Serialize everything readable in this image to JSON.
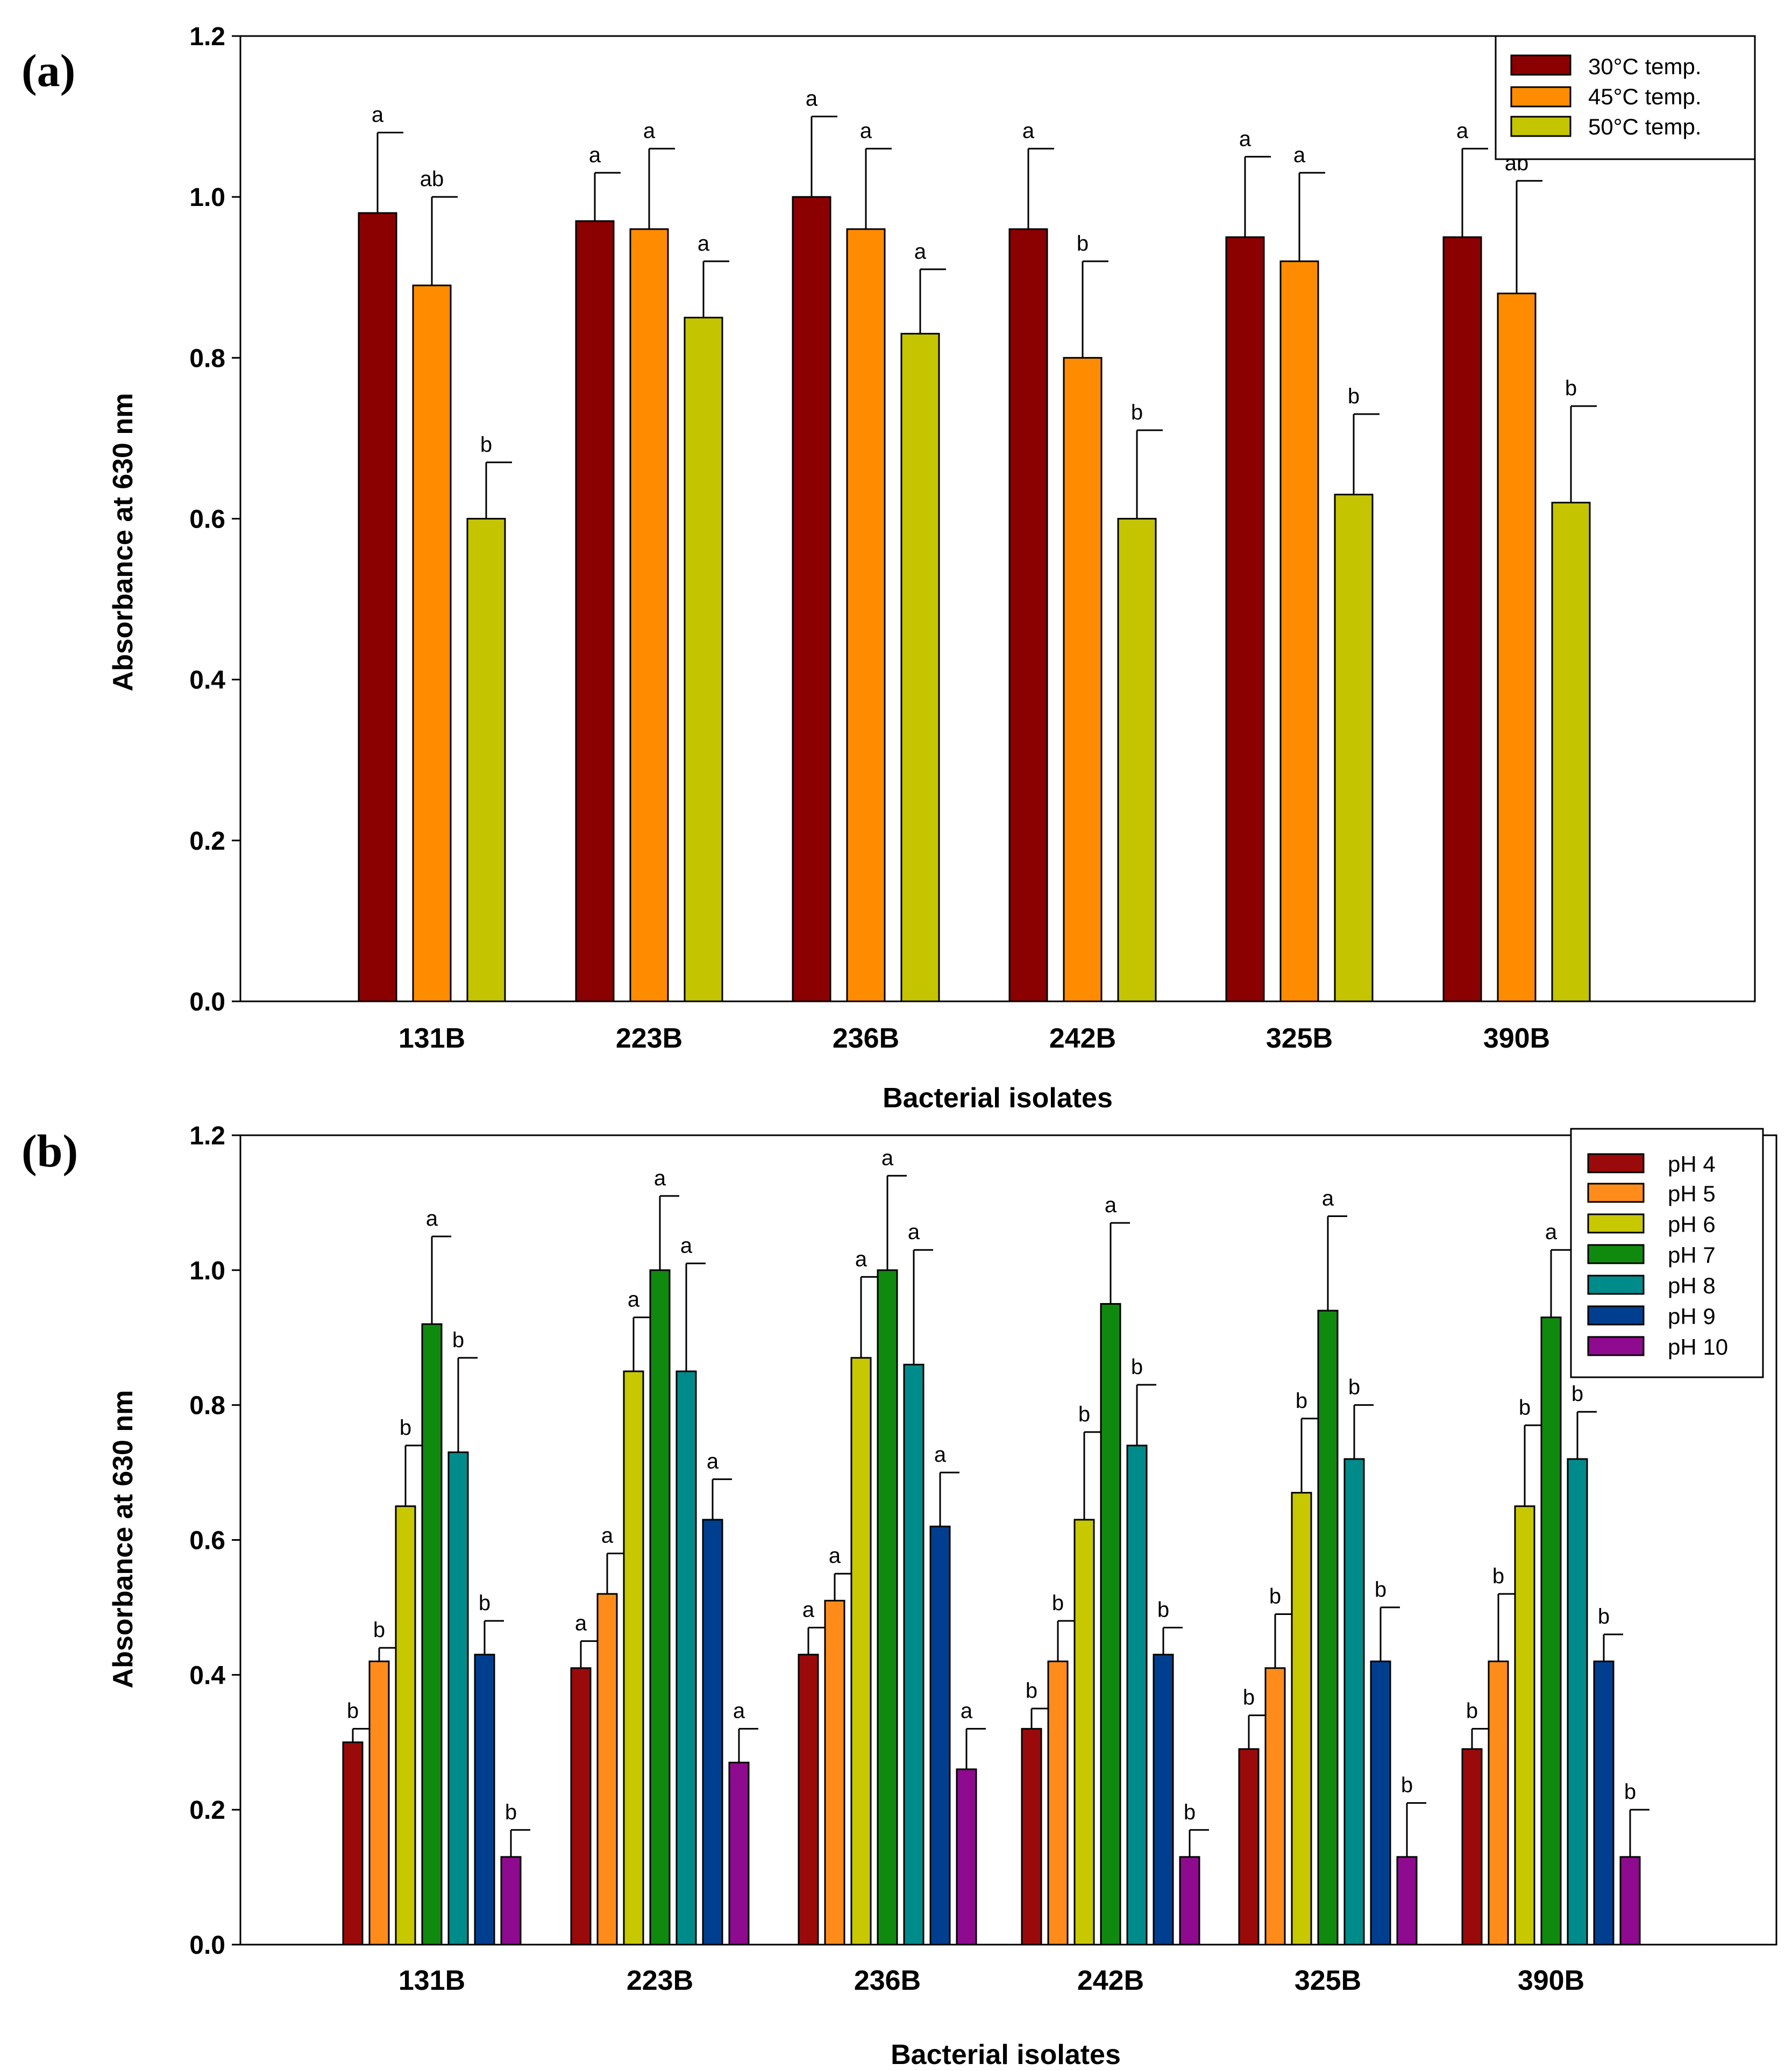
{
  "chart_data": [
    {
      "panel_label": "(a)",
      "type": "bar",
      "xlabel": "Bacterial isolates",
      "ylabel": "Absorbance at 630 nm",
      "ylim": [
        0,
        1.2
      ],
      "yticks": [
        "0.0",
        "0.2",
        "0.4",
        "0.6",
        "0.8",
        "1.0",
        "1.2"
      ],
      "legend_position": "top-right",
      "categories": [
        "131B",
        "223B",
        "236B",
        "242B",
        "325B",
        "390B"
      ],
      "series": [
        {
          "name": "30°C temp.",
          "color": "#8b0000",
          "values": [
            0.98,
            0.97,
            1.0,
            0.96,
            0.95,
            0.95
          ],
          "error_tops": [
            1.08,
            1.03,
            1.1,
            1.06,
            1.05,
            1.06
          ],
          "labels": [
            "a",
            "a",
            "a",
            "a",
            "a",
            "a"
          ]
        },
        {
          "name": "45°C temp.",
          "color": "#ff8c00",
          "values": [
            0.89,
            0.96,
            0.96,
            0.8,
            0.92,
            0.88
          ],
          "error_tops": [
            1.0,
            1.06,
            1.06,
            0.92,
            1.03,
            1.02
          ],
          "labels": [
            "ab",
            "a",
            "a",
            "b",
            "a",
            "ab"
          ]
        },
        {
          "name": "50°C temp.",
          "color": "#c4c400",
          "values": [
            0.6,
            0.85,
            0.83,
            0.6,
            0.63,
            0.62
          ],
          "error_tops": [
            0.67,
            0.92,
            0.91,
            0.71,
            0.73,
            0.74
          ],
          "labels": [
            "b",
            "a",
            "a",
            "b",
            "b",
            "b"
          ]
        }
      ]
    },
    {
      "panel_label": "(b)",
      "type": "bar",
      "xlabel": "Bacterial isolates",
      "ylabel": "Absorbance at 630 nm",
      "ylim": [
        0,
        1.2
      ],
      "yticks": [
        "0.0",
        "0.2",
        "0.4",
        "0.6",
        "0.8",
        "1.0",
        "1.2"
      ],
      "legend_position": "top-right",
      "categories": [
        "131B",
        "223B",
        "236B",
        "242B",
        "325B",
        "390B"
      ],
      "series": [
        {
          "name": "pH 4",
          "color": "#9b0a0a",
          "values": [
            0.3,
            0.41,
            0.43,
            0.32,
            0.29,
            0.29
          ],
          "error_tops": [
            0.32,
            0.45,
            0.47,
            0.35,
            0.34,
            0.32
          ],
          "labels": [
            "b",
            "a",
            "a",
            "b",
            "b",
            "b"
          ]
        },
        {
          "name": "pH 5",
          "color": "#ff8c1a",
          "values": [
            0.42,
            0.52,
            0.51,
            0.42,
            0.41,
            0.42
          ],
          "error_tops": [
            0.44,
            0.58,
            0.55,
            0.48,
            0.49,
            0.52
          ],
          "labels": [
            "b",
            "a",
            "a",
            "b",
            "b",
            "b"
          ]
        },
        {
          "name": "pH 6",
          "color": "#c8c800",
          "values": [
            0.65,
            0.85,
            0.87,
            0.63,
            0.67,
            0.65
          ],
          "error_tops": [
            0.74,
            0.93,
            0.99,
            0.76,
            0.78,
            0.77
          ],
          "labels": [
            "b",
            "a",
            "a",
            "b",
            "b",
            "b"
          ]
        },
        {
          "name": "pH 7",
          "color": "#0f8a0f",
          "values": [
            0.92,
            1.0,
            1.0,
            0.95,
            0.94,
            0.93
          ],
          "error_tops": [
            1.05,
            1.11,
            1.14,
            1.07,
            1.08,
            1.03
          ],
          "labels": [
            "a",
            "a",
            "a",
            "a",
            "a",
            "a"
          ]
        },
        {
          "name": "pH 8",
          "color": "#008b8b",
          "values": [
            0.73,
            0.85,
            0.86,
            0.74,
            0.72,
            0.72
          ],
          "error_tops": [
            0.87,
            1.01,
            1.03,
            0.83,
            0.8,
            0.79
          ],
          "labels": [
            "b",
            "a",
            "a",
            "b",
            "b",
            "b"
          ]
        },
        {
          "name": "pH 9",
          "color": "#003f8f",
          "values": [
            0.43,
            0.63,
            0.62,
            0.43,
            0.42,
            0.42
          ],
          "error_tops": [
            0.48,
            0.69,
            0.7,
            0.47,
            0.5,
            0.46
          ],
          "labels": [
            "b",
            "a",
            "a",
            "b",
            "b",
            "b"
          ]
        },
        {
          "name": "pH 10",
          "color": "#8e0a8e",
          "values": [
            0.13,
            0.27,
            0.26,
            0.13,
            0.13,
            0.13
          ],
          "error_tops": [
            0.17,
            0.32,
            0.32,
            0.17,
            0.21,
            0.2
          ],
          "labels": [
            "b",
            "a",
            "a",
            "b",
            "b",
            "b"
          ]
        }
      ]
    }
  ]
}
